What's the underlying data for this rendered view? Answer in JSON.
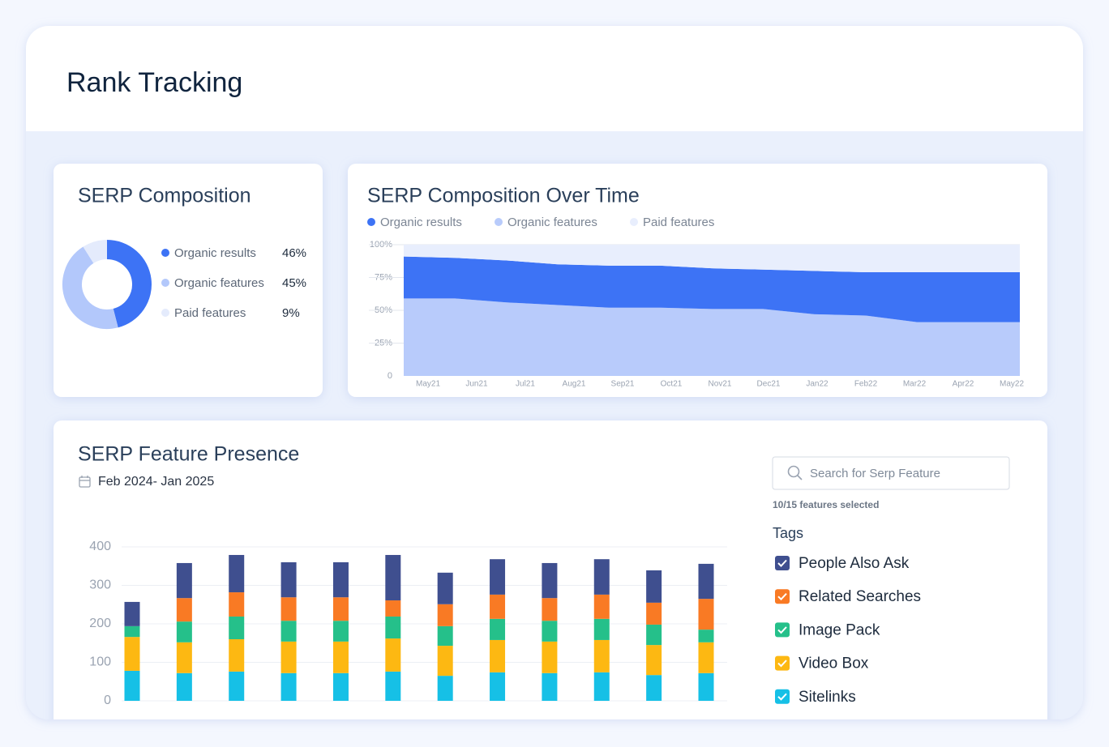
{
  "header": {
    "title": "Rank Tracking"
  },
  "chart_data": [
    {
      "type": "donut",
      "title": "SERP Composition",
      "categories": [
        "Organic results",
        "Organic features",
        "Paid features"
      ],
      "values": [
        46,
        45,
        9
      ],
      "value_labels": [
        "46%",
        "45%",
        "9%"
      ],
      "colors": [
        "#3d73f5",
        "#b3c8fb",
        "#e4ebfc"
      ]
    },
    {
      "type": "stacked_area",
      "title": "SERP Composition Over Time",
      "categories": [
        "May21",
        "Jun21",
        "Jul21",
        "Aug21",
        "Sep21",
        "Oct21",
        "Nov21",
        "Dec21",
        "Jan22",
        "Feb22",
        "Mar22",
        "Apr22",
        "May22"
      ],
      "series": [
        {
          "name": "Organic results",
          "color": "#3d73f5",
          "values": [
            32,
            31,
            32,
            31,
            32,
            32,
            31,
            30,
            33,
            33,
            38,
            38,
            38
          ]
        },
        {
          "name": "Organic features",
          "color": "#b8cbfb",
          "values": [
            59,
            59,
            56,
            54,
            52,
            52,
            51,
            51,
            47,
            46,
            41,
            41,
            41
          ]
        },
        {
          "name": "Paid features",
          "color": "#e8eefd",
          "values": [
            9,
            10,
            12,
            15,
            16,
            16,
            18,
            19,
            20,
            21,
            21,
            21,
            21
          ]
        }
      ],
      "ylim": [
        0,
        100
      ],
      "yticks": [
        0,
        {
          "value": 25,
          "label": "25%"
        },
        {
          "value": 50,
          "label": "50%"
        },
        {
          "value": 75,
          "label": "75%"
        },
        {
          "value": 100,
          "label": "100%"
        }
      ],
      "grid": true
    },
    {
      "type": "stacked_bar",
      "title": "SERP Feature Presence",
      "subtitle": "Feb 2024- Jan 2025",
      "categories": [
        null,
        null,
        null,
        null,
        null,
        null,
        null,
        null,
        null,
        null,
        null,
        null
      ],
      "series": [
        {
          "name": "People Also Ask",
          "color": "#3f4f8f",
          "values": [
            63,
            91,
            97,
            91,
            91,
            118,
            82,
            92,
            91,
            92,
            84,
            91
          ]
        },
        {
          "name": "Related Searches",
          "color": "#f97a24",
          "values": [
            0,
            61,
            63,
            61,
            61,
            42,
            57,
            63,
            59,
            63,
            57,
            80
          ]
        },
        {
          "name": "Image Pack",
          "color": "#25c08a",
          "values": [
            28,
            54,
            59,
            54,
            54,
            57,
            51,
            55,
            54,
            55,
            53,
            33
          ]
        },
        {
          "name": "Video Box",
          "color": "#fdb812",
          "values": [
            88,
            80,
            84,
            82,
            82,
            86,
            78,
            84,
            82,
            84,
            78,
            80
          ]
        },
        {
          "name": "Sitelinks",
          "color": "#16c0e6",
          "values": [
            78,
            72,
            76,
            72,
            72,
            76,
            65,
            74,
            72,
            74,
            67,
            72
          ]
        }
      ],
      "ylim": [
        0,
        400
      ],
      "yticks": [
        0,
        100,
        200,
        300,
        400
      ],
      "grid": true
    }
  ],
  "feature_filter": {
    "search_placeholder": "Search for Serp Feature",
    "selected_count": "10/15 features selected",
    "tags_title": "Tags"
  }
}
